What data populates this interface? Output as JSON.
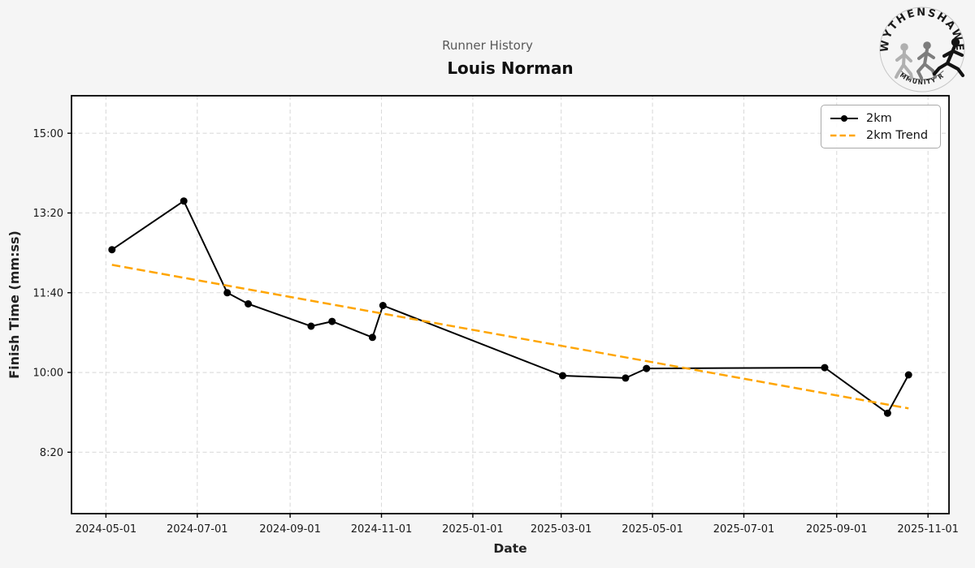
{
  "header": {
    "subtitle": "Runner History",
    "title": "Louis Norman"
  },
  "logo": {
    "top_text": "WYTHENSHAWE",
    "bottom_text": "COMMUNITY RUN"
  },
  "legend": {
    "items": [
      {
        "label": "2km",
        "style": "solid-line-circle-marker"
      },
      {
        "label": "2km Trend",
        "style": "dashed-line"
      }
    ]
  },
  "colors": {
    "background": "#f5f5f5",
    "plot_background": "#ffffff",
    "grid": "#dbdbdb",
    "frame": "#000000",
    "line": "#000000",
    "trend": "#FFA500",
    "tick_text": "#1a1a1a",
    "subtitle_text": "#595959",
    "title_text": "#111111"
  },
  "chart_data": {
    "type": "line",
    "title": "Louis Norman",
    "subtitle": "Runner History",
    "xlabel": "Date",
    "ylabel": "Finish Time (mm:ss)",
    "grid": true,
    "legend_position": "upper right",
    "x_ticks": [
      "2024-05-01",
      "2024-07-01",
      "2024-09-01",
      "2024-11-01",
      "2025-01-01",
      "2025-03-01",
      "2025-05-01",
      "2025-07-01",
      "2025-09-01",
      "2025-11-01"
    ],
    "y_ticks": [
      "8:20",
      "10:00",
      "11:40",
      "13:20",
      "15:00"
    ],
    "xlim": [
      "2024-04-08",
      "2025-11-15"
    ],
    "ylim_mmss": [
      "7:03",
      "15:47"
    ],
    "series": [
      {
        "name": "2km",
        "color": "#000000",
        "style": "solid",
        "marker": "circle",
        "points": [
          {
            "date": "2024-05-05",
            "time": "12:34"
          },
          {
            "date": "2024-06-22",
            "time": "13:35"
          },
          {
            "date": "2024-07-21",
            "time": "11:40"
          },
          {
            "date": "2024-08-04",
            "time": "11:26"
          },
          {
            "date": "2024-09-15",
            "time": "10:58"
          },
          {
            "date": "2024-09-29",
            "time": "11:04"
          },
          {
            "date": "2024-10-26",
            "time": "10:44"
          },
          {
            "date": "2024-11-02",
            "time": "11:24"
          },
          {
            "date": "2025-03-02",
            "time": "9:56"
          },
          {
            "date": "2025-04-13",
            "time": "9:53"
          },
          {
            "date": "2025-04-27",
            "time": "10:05"
          },
          {
            "date": "2025-08-24",
            "time": "10:06"
          },
          {
            "date": "2025-10-05",
            "time": "9:09"
          },
          {
            "date": "2025-10-19",
            "time": "9:57"
          }
        ]
      },
      {
        "name": "2km Trend",
        "color": "#FFA500",
        "style": "dashed",
        "marker": "none",
        "points": [
          {
            "date": "2024-05-05",
            "time": "12:15"
          },
          {
            "date": "2025-10-19",
            "time": "9:15"
          }
        ]
      }
    ]
  }
}
